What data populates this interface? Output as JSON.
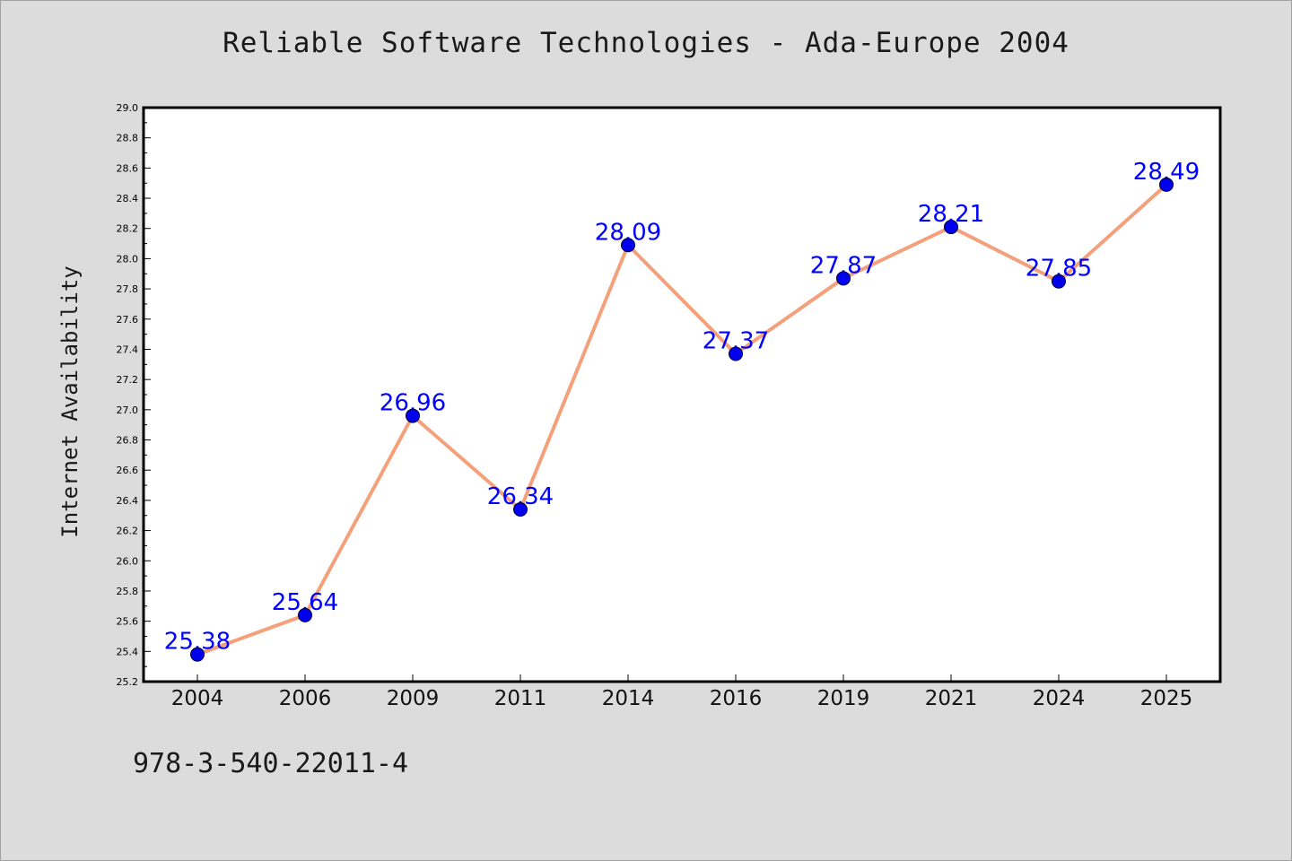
{
  "page": {
    "background": "#dcdcdc",
    "footer_text": "978-3-540-22011-4"
  },
  "chart_data": {
    "type": "line",
    "title": "Reliable Software Technologies - Ada-Europe 2004",
    "xlabel": "",
    "ylabel": "Internet Availability",
    "categories": [
      "2004",
      "2006",
      "2009",
      "2011",
      "2014",
      "2016",
      "2019",
      "2021",
      "2024",
      "2025"
    ],
    "series": [
      {
        "values": [
          25.38,
          25.64,
          26.96,
          26.34,
          28.09,
          27.37,
          27.87,
          28.21,
          27.85,
          28.49
        ],
        "labels": [
          "25.38",
          "25.64",
          "26.96",
          "26.34",
          "28.09",
          "27.37",
          "27.87",
          "28.21",
          "27.85",
          "28.49"
        ],
        "line_color": "#f4a07a",
        "marker_color": "#0000ee",
        "label_color": "#0000ff"
      }
    ],
    "ylim": [
      25.2,
      29.0
    ],
    "yticks": [
      "25.2",
      "25.4",
      "25.6",
      "25.8",
      "26.0",
      "26.2",
      "26.4",
      "26.6",
      "26.8",
      "27.0",
      "27.2",
      "27.4",
      "27.6",
      "27.8",
      "28.0",
      "28.2",
      "28.4",
      "28.6",
      "28.8",
      "29.0"
    ],
    "grid": false,
    "legend": "none",
    "plot_background": "#ffffff"
  }
}
